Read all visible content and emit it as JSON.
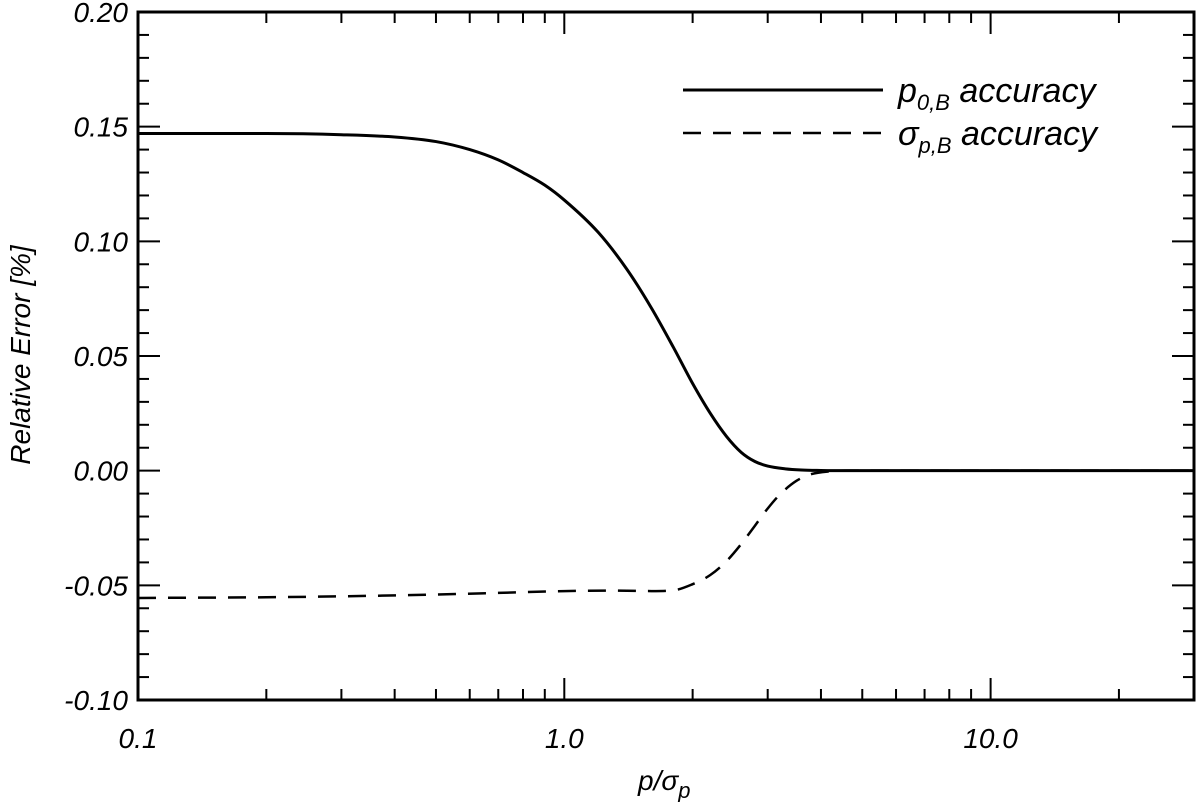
{
  "chart_data": {
    "type": "line",
    "title": "",
    "xlabel": "p/σp",
    "xlabel_parts": {
      "main": "p/σ",
      "sub": "p"
    },
    "ylabel": "Relative Error [%]",
    "xscale": "log",
    "xlim": [
      0.1,
      30
    ],
    "ylim": [
      -0.1,
      0.2
    ],
    "x_ticks": [
      0.1,
      1.0,
      10.0
    ],
    "x_tick_labels": [
      "0.1",
      "1.0",
      "10.0"
    ],
    "y_ticks": [
      -0.1,
      -0.05,
      0.0,
      0.05,
      0.1,
      0.15,
      0.2
    ],
    "y_tick_labels": [
      "-0.10",
      "-0.05",
      "0.00",
      "0.05",
      "0.10",
      "0.15",
      "0.20"
    ],
    "legend_position": "top-right",
    "series": [
      {
        "name": "p0,B accuracy",
        "label_main": "p",
        "label_sub": "0,B",
        "label_rest": " accuracy",
        "style": "solid",
        "x": [
          0.1,
          0.2,
          0.3,
          0.4,
          0.5,
          0.6,
          0.7,
          0.8,
          0.9,
          1.0,
          1.2,
          1.4,
          1.6,
          1.8,
          2.0,
          2.2,
          2.4,
          2.6,
          2.8,
          3.0,
          3.3,
          3.6,
          4.0,
          4.5,
          5.0,
          7.0,
          10.0,
          20.0,
          30.0
        ],
        "y": [
          0.147,
          0.147,
          0.1465,
          0.1455,
          0.1435,
          0.14,
          0.1355,
          0.13,
          0.1245,
          0.118,
          0.104,
          0.088,
          0.071,
          0.054,
          0.038,
          0.025,
          0.015,
          0.008,
          0.004,
          0.002,
          0.0008,
          0.0003,
          0.0001,
          0.0,
          0.0,
          0.0,
          0.0,
          0.0,
          0.0
        ]
      },
      {
        "name": "σp,B accuracy",
        "label_main": "σ",
        "label_sub": "p,B",
        "label_rest": " accuracy",
        "style": "dashed",
        "x": [
          0.1,
          0.2,
          0.3,
          0.5,
          0.7,
          1.0,
          1.3,
          1.6,
          1.8,
          2.0,
          2.2,
          2.4,
          2.6,
          2.8,
          3.0,
          3.2,
          3.5,
          3.8,
          4.2,
          4.6,
          5.0,
          7.0,
          10.0,
          20.0,
          30.0
        ],
        "y": [
          -0.0555,
          -0.0552,
          -0.0548,
          -0.054,
          -0.0533,
          -0.0525,
          -0.0523,
          -0.0525,
          -0.0522,
          -0.0495,
          -0.0455,
          -0.0395,
          -0.032,
          -0.024,
          -0.0165,
          -0.0105,
          -0.0045,
          -0.0015,
          -0.0003,
          0.0,
          0.0,
          0.0,
          0.0,
          0.0,
          0.0
        ]
      }
    ]
  }
}
